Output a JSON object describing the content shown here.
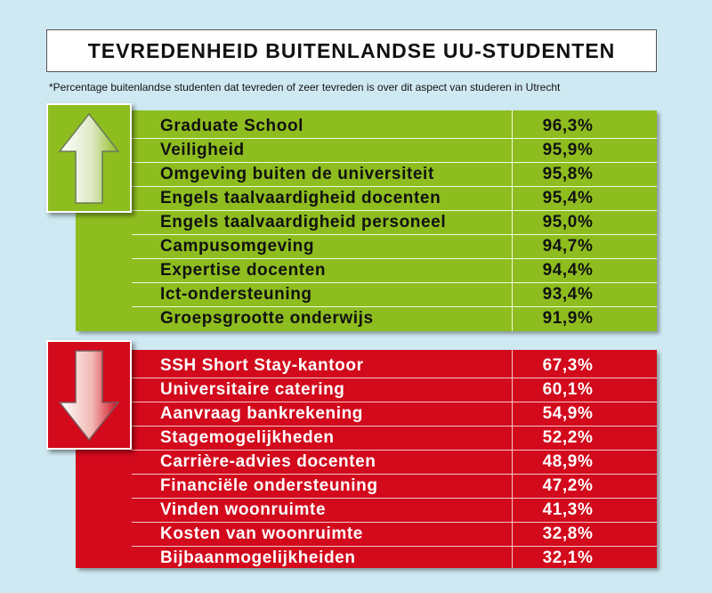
{
  "title": "TEVREDENHEID BUITENLANDSE UU-STUDENTEN",
  "subtitle": "*Percentage buitenlandse studenten dat tevreden of zeer tevreden is over dit aspect van studeren in Utrecht",
  "colors": {
    "background": "#cfe9f3",
    "positive": "#8ebd1f",
    "negative": "#d3091c"
  },
  "icons": {
    "top": "arrow-up-icon",
    "bottom": "arrow-down-icon"
  },
  "chart_data": {
    "type": "table",
    "title": "TEVREDENHEID BUITENLANDSE UU-STUDENTEN",
    "subtitle": "*Percentage buitenlandse studenten dat tevreden of zeer tevreden is over dit aspect van studeren in Utrecht",
    "groups": [
      {
        "rows": [
          {
            "label": "Graduate School",
            "value": 96.3,
            "display": "96,3%"
          },
          {
            "label": "Veiligheid",
            "value": 95.9,
            "display": "95,9%"
          },
          {
            "label": "Omgeving buiten de universiteit",
            "value": 95.8,
            "display": "95,8%"
          },
          {
            "label": "Engels taalvaardigheid docenten",
            "value": 95.4,
            "display": "95,4%"
          },
          {
            "label": "Engels taalvaardigheid personeel",
            "value": 95.0,
            "display": "95,0%"
          },
          {
            "label": "Campusomgeving",
            "value": 94.7,
            "display": "94,7%"
          },
          {
            "label": "Expertise docenten",
            "value": 94.4,
            "display": "94,4%"
          },
          {
            "label": "Ict-ondersteuning",
            "value": 93.4,
            "display": "93,4%"
          },
          {
            "label": "Groepsgrootte onderwijs",
            "value": 91.9,
            "display": "91,9%"
          }
        ]
      },
      {
        "rows": [
          {
            "label": "SSH Short Stay-kantoor",
            "value": 67.3,
            "display": "67,3%"
          },
          {
            "label": "Universitaire catering",
            "value": 60.1,
            "display": "60,1%"
          },
          {
            "label": "Aanvraag bankrekening",
            "value": 54.9,
            "display": "54,9%"
          },
          {
            "label": "Stagemogelijkheden",
            "value": 52.2,
            "display": "52,2%"
          },
          {
            "label": "Carrière-advies docenten",
            "value": 48.9,
            "display": "48,9%"
          },
          {
            "label": "Financiële ondersteuning",
            "value": 47.2,
            "display": "47,2%"
          },
          {
            "label": "Vinden woonruimte",
            "value": 41.3,
            "display": "41,3%"
          },
          {
            "label": "Kosten van woonruimte",
            "value": 32.8,
            "display": "32,8%"
          },
          {
            "label": "Bijbaanmogelijkheiden",
            "value": 32.1,
            "display": "32,1%"
          }
        ]
      }
    ]
  }
}
